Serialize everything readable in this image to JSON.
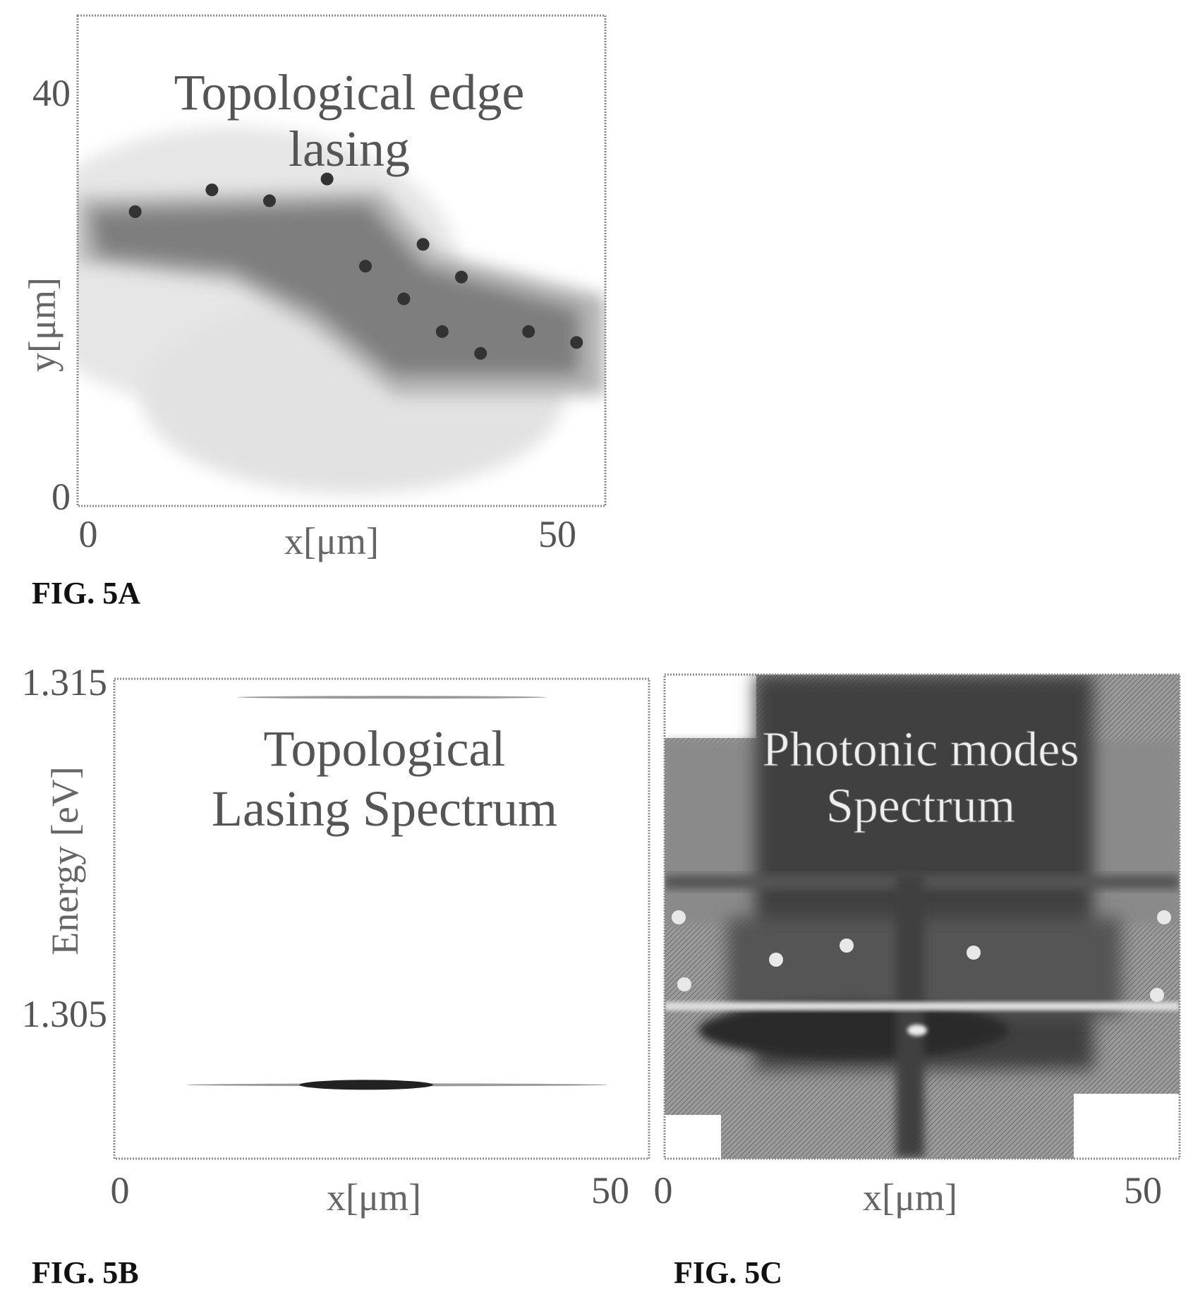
{
  "figures": {
    "a": {
      "label": "FIG. 5A"
    },
    "b": {
      "label": "FIG. 5B"
    },
    "c": {
      "label": "FIG. 5C"
    }
  },
  "chart_data": [
    {
      "id": "5A",
      "type": "heatmap",
      "annotation": [
        "Topological edge",
        "lasing"
      ],
      "xlabel": "x[μm]",
      "ylabel": "y[μm]",
      "xticks": [
        "0",
        "50"
      ],
      "yticks": [
        "40",
        "0"
      ],
      "xlim": [
        0,
        55
      ],
      "ylim": [
        0,
        45
      ],
      "description_points": [
        {
          "x": 6,
          "y": 27
        },
        {
          "x": 14,
          "y": 29
        },
        {
          "x": 20,
          "y": 28
        },
        {
          "x": 26,
          "y": 30
        },
        {
          "x": 30,
          "y": 22
        },
        {
          "x": 34,
          "y": 19
        },
        {
          "x": 38,
          "y": 16
        },
        {
          "x": 42,
          "y": 14
        },
        {
          "x": 47,
          "y": 16
        },
        {
          "x": 52,
          "y": 15
        },
        {
          "x": 36,
          "y": 24
        },
        {
          "x": 40,
          "y": 21
        }
      ]
    },
    {
      "id": "5B",
      "type": "heatmap",
      "annotation": [
        "Topological",
        "Lasing Spectrum"
      ],
      "xlabel": "x[μm]",
      "ylabel": "Energy [eV]",
      "xticks": [
        "0",
        "50"
      ],
      "yticks": [
        "1.315",
        "1.305"
      ],
      "xlim": [
        0,
        52
      ],
      "ylim": [
        1.302,
        1.315
      ],
      "lines": [
        {
          "energy": 1.3145,
          "x_range": [
            12,
            42
          ],
          "intensity": "weak"
        },
        {
          "energy": 1.304,
          "x_range": [
            7,
            48
          ],
          "intensity": "weak"
        },
        {
          "energy": 1.304,
          "x_range": [
            18,
            31
          ],
          "intensity": "strong"
        }
      ]
    },
    {
      "id": "5C",
      "type": "heatmap",
      "annotation": [
        "Photonic modes",
        "Spectrum"
      ],
      "xlabel": "x[μm]",
      "xticks": [
        "0",
        "50"
      ],
      "xlim": [
        0,
        52
      ],
      "ylim": [
        1.302,
        1.315
      ]
    }
  ]
}
